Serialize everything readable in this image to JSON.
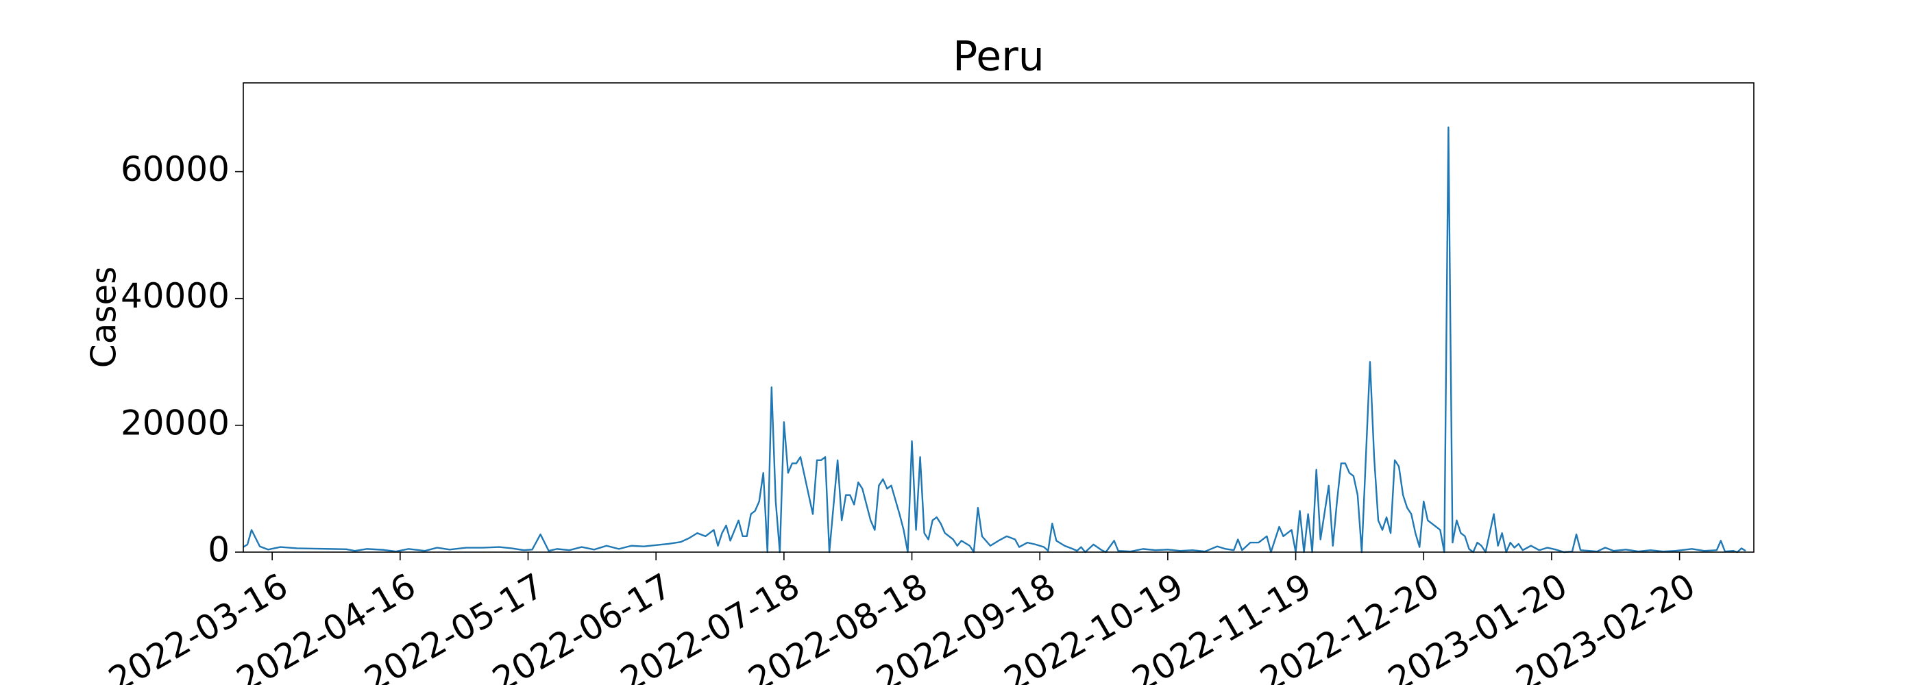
{
  "chart_data": {
    "type": "line",
    "title": "Peru",
    "y_label": "Cases",
    "color": "#1f77b4",
    "x": [
      "2022-03-09",
      "2022-03-10",
      "2022-03-11",
      "2022-03-13",
      "2022-03-15",
      "2022-03-18",
      "2022-03-22",
      "2022-03-26",
      "2022-03-30",
      "2022-04-03",
      "2022-04-05",
      "2022-04-08",
      "2022-04-12",
      "2022-04-15",
      "2022-04-18",
      "2022-04-22",
      "2022-04-25",
      "2022-04-28",
      "2022-05-02",
      "2022-05-06",
      "2022-05-10",
      "2022-05-13",
      "2022-05-16",
      "2022-05-18",
      "2022-05-20",
      "2022-05-22",
      "2022-05-24",
      "2022-05-27",
      "2022-05-30",
      "2022-06-02",
      "2022-06-05",
      "2022-06-08",
      "2022-06-11",
      "2022-06-14",
      "2022-06-17",
      "2022-06-20",
      "2022-06-23",
      "2022-06-25",
      "2022-06-27",
      "2022-06-29",
      "2022-07-01",
      "2022-07-02",
      "2022-07-03",
      "2022-07-04",
      "2022-07-05",
      "2022-07-07",
      "2022-07-08",
      "2022-07-09",
      "2022-07-10",
      "2022-07-11",
      "2022-07-12",
      "2022-07-13",
      "2022-07-14",
      "2022-07-15",
      "2022-07-16",
      "2022-07-17",
      "2022-07-18",
      "2022-07-19",
      "2022-07-20",
      "2022-07-21",
      "2022-07-22",
      "2022-07-23",
      "2022-07-25",
      "2022-07-26",
      "2022-07-27",
      "2022-07-28",
      "2022-07-29",
      "2022-07-31",
      "2022-08-01",
      "2022-08-02",
      "2022-08-03",
      "2022-08-04",
      "2022-08-05",
      "2022-08-06",
      "2022-08-08",
      "2022-08-09",
      "2022-08-10",
      "2022-08-11",
      "2022-08-12",
      "2022-08-13",
      "2022-08-15",
      "2022-08-16",
      "2022-08-17",
      "2022-08-18",
      "2022-08-19",
      "2022-08-20",
      "2022-08-21",
      "2022-08-22",
      "2022-08-23",
      "2022-08-24",
      "2022-08-25",
      "2022-08-26",
      "2022-08-28",
      "2022-08-29",
      "2022-08-30",
      "2022-09-01",
      "2022-09-02",
      "2022-09-03",
      "2022-09-04",
      "2022-09-06",
      "2022-09-08",
      "2022-09-10",
      "2022-09-12",
      "2022-09-13",
      "2022-09-15",
      "2022-09-17",
      "2022-09-19",
      "2022-09-20",
      "2022-09-21",
      "2022-09-22",
      "2022-09-24",
      "2022-09-26",
      "2022-09-27",
      "2022-09-28",
      "2022-09-29",
      "2022-10-01",
      "2022-10-03",
      "2022-10-04",
      "2022-10-06",
      "2022-10-07",
      "2022-10-10",
      "2022-10-13",
      "2022-10-16",
      "2022-10-19",
      "2022-10-22",
      "2022-10-25",
      "2022-10-28",
      "2022-10-31",
      "2022-11-02",
      "2022-11-04",
      "2022-11-05",
      "2022-11-06",
      "2022-11-08",
      "2022-11-10",
      "2022-11-12",
      "2022-11-13",
      "2022-11-15",
      "2022-11-16",
      "2022-11-18",
      "2022-11-19",
      "2022-11-20",
      "2022-11-21",
      "2022-11-22",
      "2022-11-23",
      "2022-11-24",
      "2022-11-25",
      "2022-11-27",
      "2022-11-28",
      "2022-11-29",
      "2022-11-30",
      "2022-12-01",
      "2022-12-02",
      "2022-12-03",
      "2022-12-04",
      "2022-12-05",
      "2022-12-07",
      "2022-12-08",
      "2022-12-09",
      "2022-12-10",
      "2022-12-11",
      "2022-12-12",
      "2022-12-13",
      "2022-12-14",
      "2022-12-15",
      "2022-12-16",
      "2022-12-17",
      "2022-12-18",
      "2022-12-19",
      "2022-12-20",
      "2022-12-21",
      "2022-12-22",
      "2022-12-24",
      "2022-12-25",
      "2022-12-26",
      "2022-12-27",
      "2022-12-28",
      "2022-12-29",
      "2022-12-30",
      "2022-12-31",
      "2023-01-01",
      "2023-01-02",
      "2023-01-03",
      "2023-01-04",
      "2023-01-06",
      "2023-01-07",
      "2023-01-08",
      "2023-01-09",
      "2023-01-10",
      "2023-01-11",
      "2023-01-12",
      "2023-01-13",
      "2023-01-15",
      "2023-01-17",
      "2023-01-19",
      "2023-01-21",
      "2023-01-23",
      "2023-01-25",
      "2023-01-26",
      "2023-01-27",
      "2023-01-31",
      "2023-02-02",
      "2023-02-04",
      "2023-02-07",
      "2023-02-10",
      "2023-02-13",
      "2023-02-16",
      "2023-02-19",
      "2023-02-23",
      "2023-02-26",
      "2023-03-01",
      "2023-03-02",
      "2023-03-03",
      "2023-03-05",
      "2023-03-06",
      "2023-03-07",
      "2023-03-08"
    ],
    "values": [
      800,
      1200,
      3500,
      900,
      400,
      800,
      600,
      550,
      500,
      450,
      200,
      500,
      350,
      100,
      500,
      200,
      700,
      400,
      700,
      700,
      800,
      600,
      300,
      400,
      2800,
      200,
      500,
      300,
      800,
      400,
      1000,
      500,
      1000,
      900,
      1100,
      1300,
      1600,
      2200,
      3000,
      2500,
      3500,
      1000,
      3000,
      4200,
      1800,
      5000,
      2500,
      2500,
      6000,
      6500,
      8000,
      12500,
      0,
      26000,
      8000,
      0,
      20500,
      12500,
      14000,
      14000,
      15000,
      12000,
      6000,
      14500,
      14500,
      15000,
      0,
      14500,
      5000,
      9000,
      9000,
      7500,
      11000,
      10000,
      5000,
      3500,
      10500,
      11500,
      10000,
      10500,
      6000,
      3500,
      0,
      17500,
      3500,
      15000,
      3000,
      2000,
      5000,
      5500,
      4500,
      3000,
      2000,
      1000,
      1800,
      1000,
      0,
      7000,
      2500,
      1000,
      1800,
      2500,
      2000,
      800,
      1500,
      1200,
      800,
      200,
      4500,
      1800,
      1000,
      500,
      200,
      800,
      0,
      1200,
      300,
      0,
      1800,
      200,
      100,
      500,
      300,
      400,
      200,
      300,
      100,
      900,
      500,
      300,
      2000,
      300,
      1500,
      1500,
      2500,
      0,
      4000,
      2500,
      3500,
      0,
      6500,
      0,
      6000,
      0,
      13000,
      2000,
      10500,
      1000,
      8000,
      14000,
      14000,
      12500,
      12000,
      9000,
      0,
      30000,
      15000,
      5000,
      3500,
      5500,
      3000,
      14500,
      13500,
      9000,
      7000,
      6000,
      3000,
      800,
      8000,
      5000,
      4500,
      3500,
      0,
      67000,
      1500,
      5000,
      3000,
      2500,
      500,
      0,
      1500,
      1000,
      0,
      6000,
      1000,
      3000,
      0,
      1500,
      700,
      1300,
      300,
      1000,
      300,
      700,
      400,
      0,
      100,
      2800,
      300,
      100,
      700,
      200,
      400,
      100,
      300,
      100,
      200,
      500,
      200,
      300,
      1800,
      100,
      200,
      0,
      600,
      200
    ],
    "xlim": [
      "2022-03-09",
      "2023-03-10"
    ],
    "xticks": [
      "2022-03-16",
      "2022-04-16",
      "2022-05-17",
      "2022-06-17",
      "2022-07-18",
      "2022-08-18",
      "2022-09-18",
      "2022-10-19",
      "2022-11-19",
      "2022-12-20",
      "2023-01-20",
      "2023-02-20"
    ],
    "ylim": [
      0,
      74000
    ],
    "yticks": [
      0,
      20000,
      40000,
      60000
    ]
  }
}
